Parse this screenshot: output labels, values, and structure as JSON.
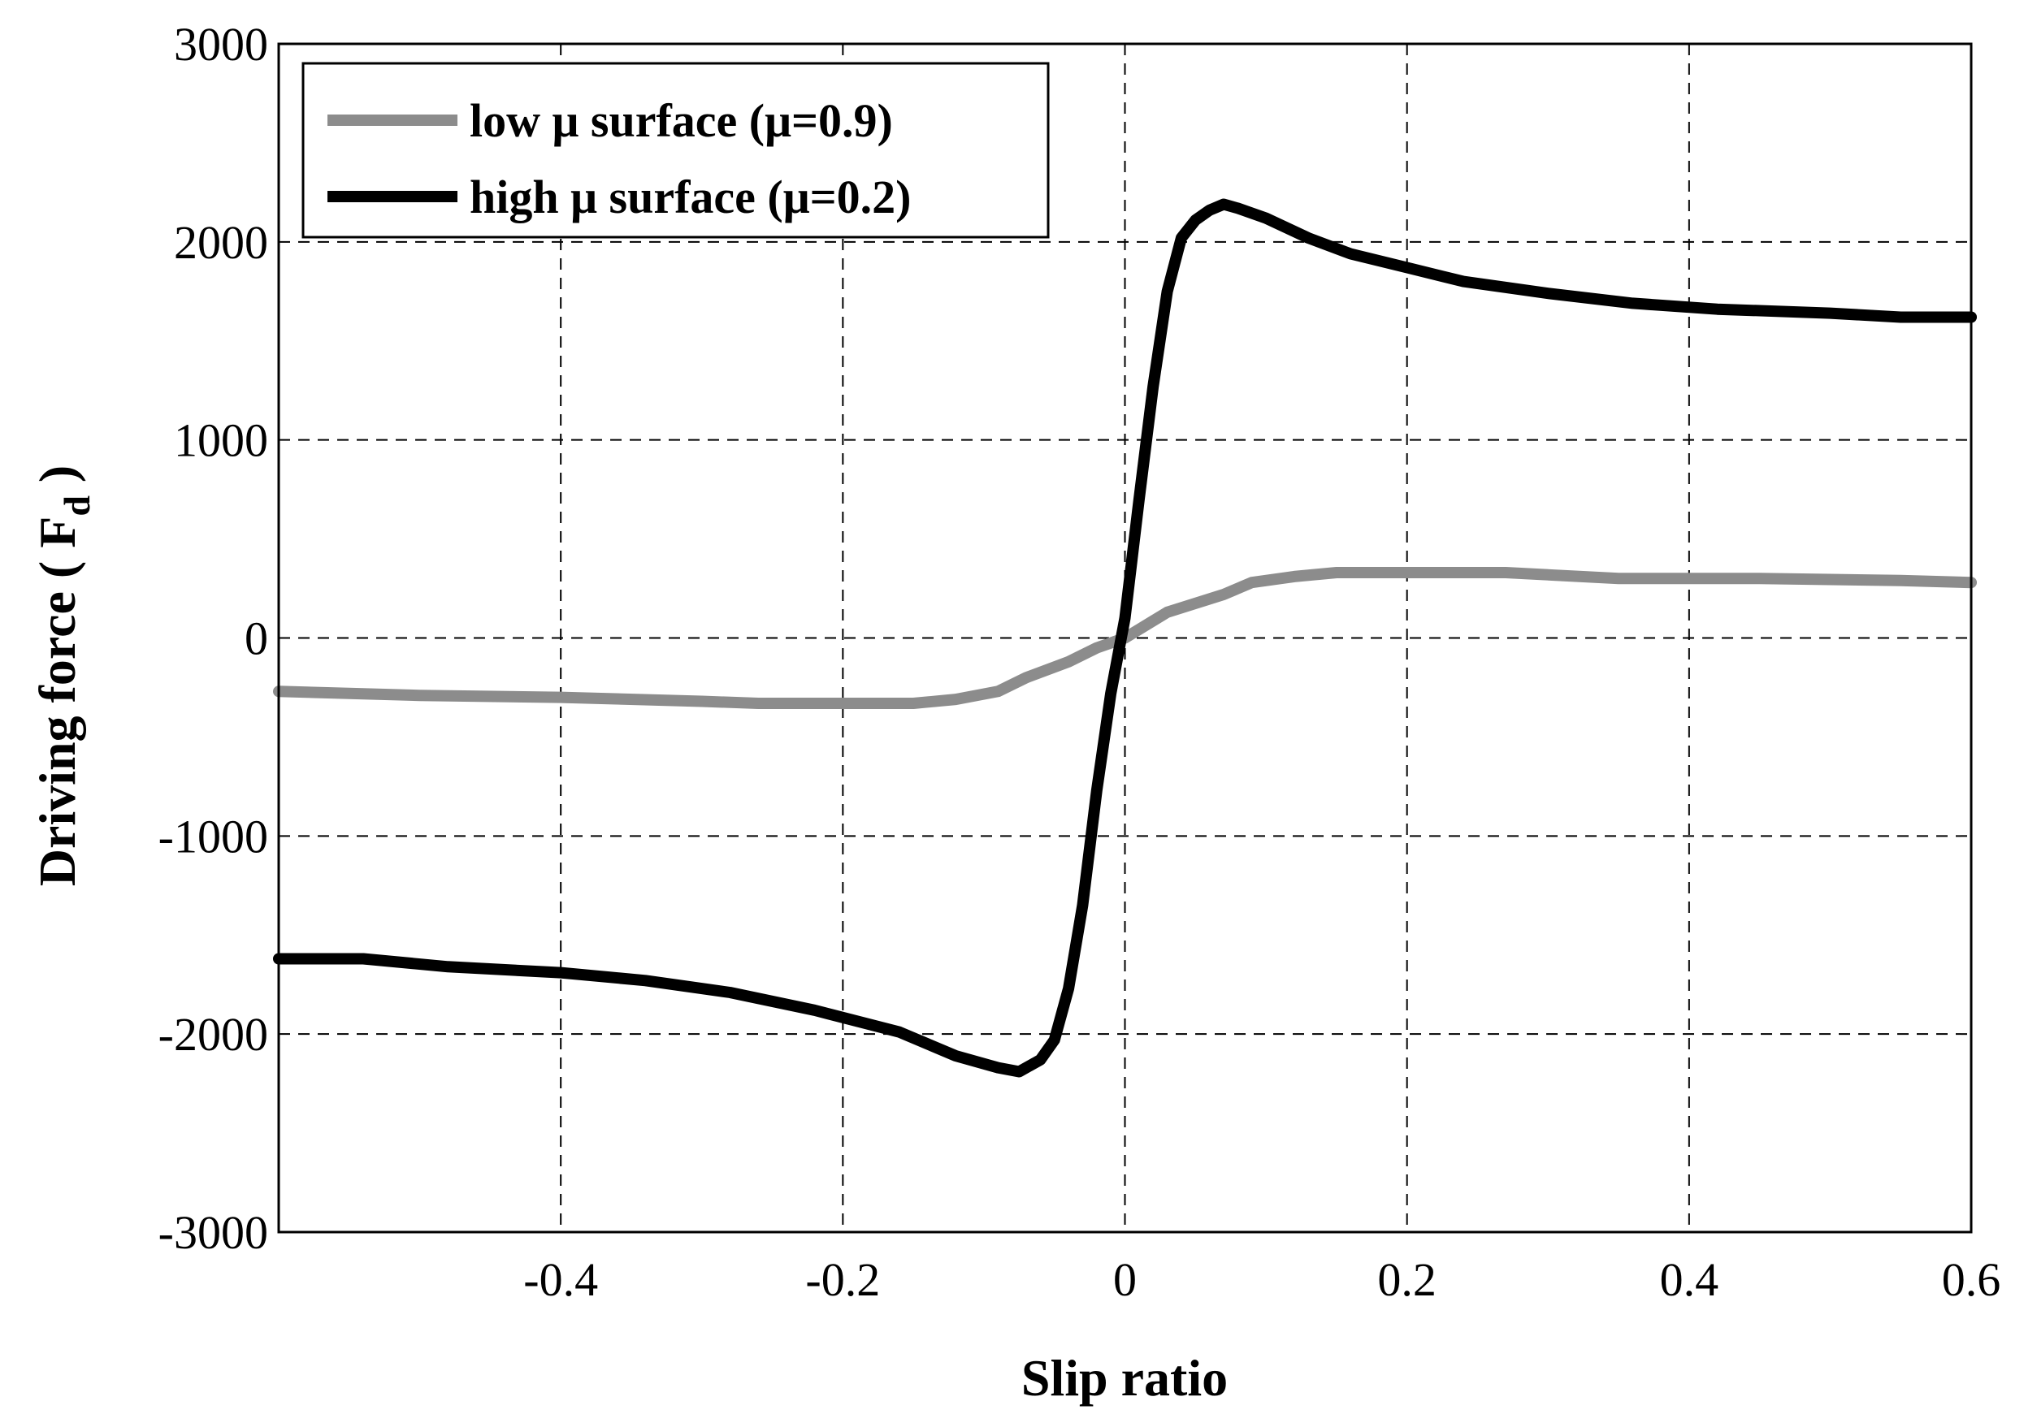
{
  "chart_data": {
    "type": "line",
    "xlabel": "Slip ratio",
    "ylabel": "Driving force ( F",
    "ylabel_sub": "d",
    "ylabel_end": " )",
    "xlim": [
      -0.6,
      0.6
    ],
    "ylim": [
      -3000,
      3000
    ],
    "xticks": [
      -0.4,
      -0.2,
      0,
      0.2,
      0.4,
      0.6
    ],
    "xtick_labels": [
      "-0.4",
      "-0.2",
      "0",
      "0.2",
      "0.4",
      "0.6"
    ],
    "yticks": [
      -3000,
      -2000,
      -1000,
      0,
      1000,
      2000,
      3000
    ],
    "ytick_labels": [
      "-3000",
      "-2000",
      "-1000",
      "0",
      "1000",
      "2000",
      "3000"
    ],
    "grid": true,
    "legend_position": "top-left",
    "series": [
      {
        "name": "low μ surface (μ=0.9)",
        "color": "#8c8c8c",
        "x": [
          -0.6,
          -0.5,
          -0.4,
          -0.3,
          -0.26,
          -0.2,
          -0.15,
          -0.12,
          -0.09,
          -0.07,
          -0.04,
          -0.02,
          0,
          0.03,
          0.07,
          0.09,
          0.12,
          0.15,
          0.2,
          0.27,
          0.35,
          0.45,
          0.55,
          0.6
        ],
        "y": [
          -270,
          -290,
          -300,
          -320,
          -330,
          -330,
          -330,
          -310,
          -270,
          -200,
          -120,
          -50,
          0,
          130,
          220,
          280,
          310,
          330,
          330,
          330,
          300,
          300,
          290,
          280
        ]
      },
      {
        "name": "high μ surface (μ=0.2)",
        "color": "#000000",
        "x": [
          -0.6,
          -0.54,
          -0.48,
          -0.4,
          -0.34,
          -0.28,
          -0.22,
          -0.16,
          -0.12,
          -0.09,
          -0.075,
          -0.06,
          -0.05,
          -0.04,
          -0.03,
          -0.02,
          -0.01,
          0,
          0.01,
          0.02,
          0.03,
          0.04,
          0.05,
          0.06,
          0.07,
          0.08,
          0.1,
          0.13,
          0.16,
          0.2,
          0.24,
          0.3,
          0.36,
          0.42,
          0.5,
          0.55,
          0.6
        ],
        "y": [
          -1620,
          -1620,
          -1660,
          -1690,
          -1730,
          -1790,
          -1880,
          -1990,
          -2110,
          -2170,
          -2190,
          -2130,
          -2030,
          -1770,
          -1350,
          -770,
          -280,
          100,
          700,
          1270,
          1750,
          2020,
          2110,
          2160,
          2190,
          2170,
          2120,
          2020,
          1940,
          1870,
          1800,
          1740,
          1690,
          1660,
          1640,
          1620,
          1620
        ]
      }
    ]
  }
}
